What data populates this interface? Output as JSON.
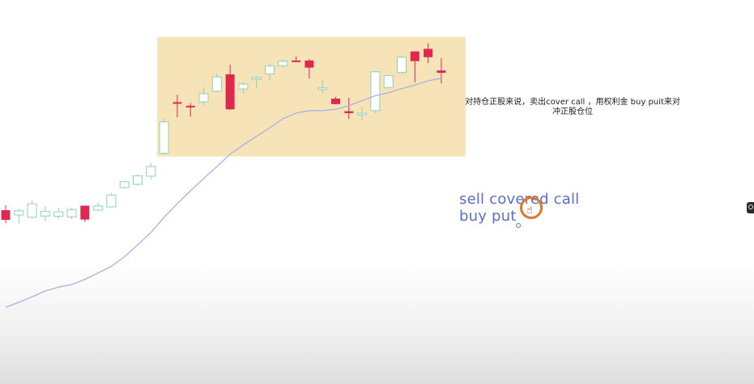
{
  "note_text": "对持仓正股来说，卖出cover call ，用权利金 buy puit来对冲正股仓位",
  "handwritten": {
    "line1": "sell covered call",
    "line2": "buy put"
  },
  "colors": {
    "up": "#8fd1b5",
    "down": "#e0284f",
    "ma": "#aab0e6",
    "highlight_fill": "#f7e3b8",
    "annotation": "#5b6fc9",
    "pointer_ring": "#e0782a"
  },
  "chart_data": {
    "type": "candlestick",
    "title": "",
    "xlabel": "",
    "ylabel": "",
    "ylim": [
      0,
      1000
    ],
    "candles": [
      {
        "o": 400,
        "h": 415,
        "l": 360,
        "c": 370
      },
      {
        "o": 385,
        "h": 405,
        "l": 360,
        "c": 398
      },
      {
        "o": 378,
        "h": 430,
        "l": 375,
        "c": 420
      },
      {
        "o": 382,
        "h": 412,
        "l": 366,
        "c": 396
      },
      {
        "o": 381,
        "h": 408,
        "l": 374,
        "c": 395
      },
      {
        "o": 379,
        "h": 408,
        "l": 374,
        "c": 402
      },
      {
        "o": 414,
        "h": 414,
        "l": 364,
        "c": 371
      },
      {
        "o": 400,
        "h": 425,
        "l": 398,
        "c": 413
      },
      {
        "o": 410,
        "h": 453,
        "l": 408,
        "c": 447
      },
      {
        "o": 470,
        "h": 490,
        "l": 466,
        "c": 488
      },
      {
        "o": 480,
        "h": 510,
        "l": 477,
        "c": 506
      },
      {
        "o": 505,
        "h": 545,
        "l": 495,
        "c": 535
      },
      {
        "o": 576,
        "h": 684,
        "l": 571,
        "c": 673
      },
      {
        "o": 734,
        "h": 757,
        "l": 688,
        "c": 729
      },
      {
        "o": 723,
        "h": 731,
        "l": 689,
        "c": 720
      },
      {
        "o": 735,
        "h": 780,
        "l": 724,
        "c": 760
      },
      {
        "o": 768,
        "h": 822,
        "l": 765,
        "c": 812
      },
      {
        "o": 820,
        "h": 850,
        "l": 710,
        "c": 712
      },
      {
        "o": 775,
        "h": 795,
        "l": 760,
        "c": 790
      },
      {
        "o": 808,
        "h": 815,
        "l": 775,
        "c": 810
      },
      {
        "o": 822,
        "h": 853,
        "l": 800,
        "c": 846
      },
      {
        "o": 847,
        "h": 864,
        "l": 840,
        "c": 861
      },
      {
        "o": 863,
        "h": 876,
        "l": 858,
        "c": 862
      },
      {
        "o": 863,
        "h": 868,
        "l": 807,
        "c": 841
      },
      {
        "o": 773,
        "h": 805,
        "l": 762,
        "c": 778
      },
      {
        "o": 745,
        "h": 751,
        "l": 728,
        "c": 728
      },
      {
        "o": 706,
        "h": 748,
        "l": 682,
        "c": 700
      },
      {
        "o": 696,
        "h": 720,
        "l": 677,
        "c": 700
      },
      {
        "o": 708,
        "h": 830,
        "l": 700,
        "c": 828
      },
      {
        "o": 779,
        "h": 818,
        "l": 779,
        "c": 816
      },
      {
        "o": 826,
        "h": 877,
        "l": 822,
        "c": 873
      },
      {
        "o": 891,
        "h": 891,
        "l": 795,
        "c": 861
      },
      {
        "o": 899,
        "h": 916,
        "l": 855,
        "c": 873
      },
      {
        "o": 832,
        "h": 870,
        "l": 792,
        "c": 825
      }
    ],
    "ma": [
      100,
      115,
      132,
      150,
      162,
      170,
      186,
      206,
      226,
      256,
      293,
      331,
      378,
      420,
      460,
      498,
      535,
      573,
      602,
      628,
      655,
      683,
      700,
      708,
      708,
      712,
      723,
      739,
      754,
      763,
      776,
      787,
      800,
      808
    ],
    "highlight_range": {
      "from": 12,
      "to": 33
    }
  }
}
